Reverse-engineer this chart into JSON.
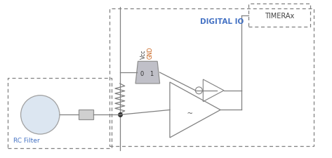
{
  "bg_color": "#ffffff",
  "line_color": "#808080",
  "dashed_color": "#808080",
  "text_color_blue": "#4472c4",
  "text_color_orange": "#c55a11",
  "text_color_dark": "#404040",
  "fig_width": 4.73,
  "fig_height": 2.26,
  "dpi": 100,
  "timerax_label": "TIMERAx",
  "digital_io_label": "DIGITAL IO",
  "rc_filter_label": "RC Filter",
  "vcc_label": "Vcc",
  "gnd_label": "GND"
}
